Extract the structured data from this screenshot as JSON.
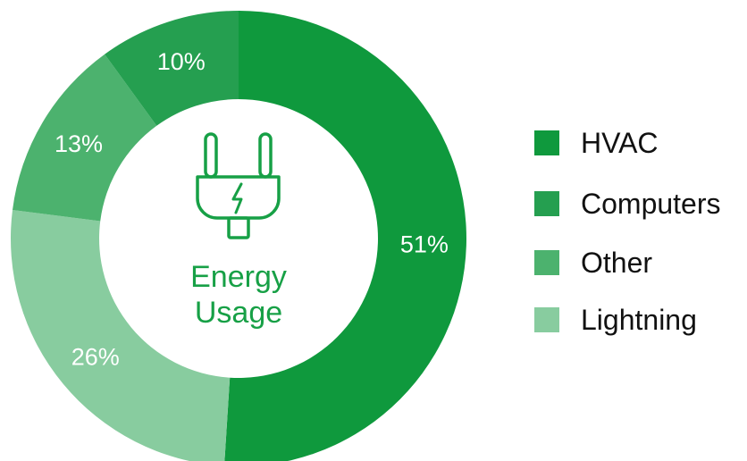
{
  "chart_data": {
    "type": "pie",
    "variant": "donut",
    "center_text": [
      "Energy",
      "Usage"
    ],
    "center_icon": "plug-icon",
    "slices": [
      {
        "label": "HVAC",
        "value": 51,
        "value_label": "51%",
        "color": "#0f993d"
      },
      {
        "label": "Lightning",
        "value": 26,
        "value_label": "26%",
        "color": "#88cc9f"
      },
      {
        "label": "Computers",
        "value": 13,
        "value_label": "13%",
        "color": "#4cb26e"
      },
      {
        "label": "Other",
        "value": 10,
        "value_label": "10%",
        "color": "#259f50"
      }
    ],
    "legend": [
      {
        "label": "HVAC",
        "color": "#0f993d"
      },
      {
        "label": "Computers",
        "color": "#259f50"
      },
      {
        "label": "Other",
        "color": "#4cb26e"
      },
      {
        "label": "Lightning",
        "color": "#88cc9f"
      }
    ],
    "legend_position": "right",
    "colors": {
      "accent": "#17a046",
      "label_text": "#ffffff"
    }
  }
}
